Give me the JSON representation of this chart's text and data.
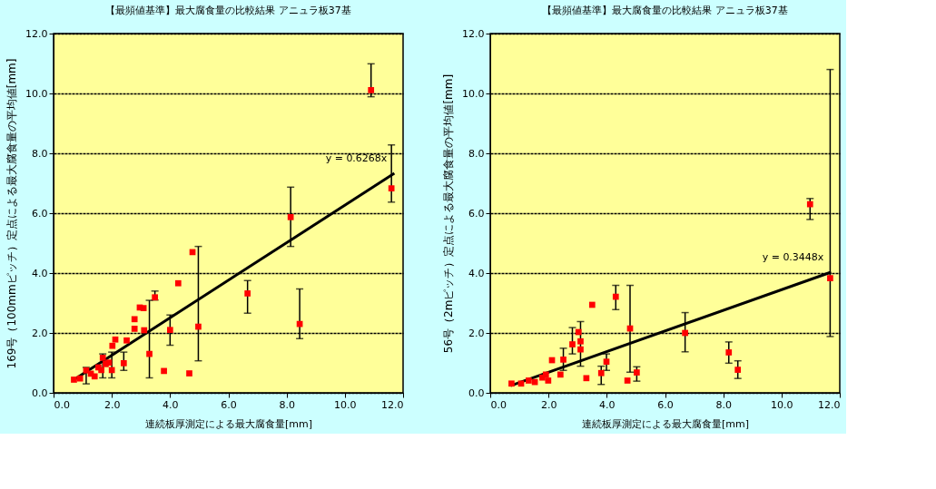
{
  "chart_data": [
    {
      "type": "scatter",
      "title": "【最頻値基準】最大腐食量の比較結果 アニュラ板37基",
      "xlabel": "連続板厚測定による最大腐食量[mm]",
      "ylabel": "169号（100mmピッチ）定点による最大腐食量の平均値[mm]",
      "xlim": [
        0,
        12
      ],
      "ylim": [
        0,
        12
      ],
      "xticks": [
        {
          "value": 0,
          "label": "0.0"
        },
        {
          "value": 2,
          "label": "2.0"
        },
        {
          "value": 4,
          "label": "4.0"
        },
        {
          "value": 6,
          "label": "6.0"
        },
        {
          "value": 8,
          "label": "8.0"
        },
        {
          "value": 10,
          "label": "10.0"
        },
        {
          "value": 12,
          "label": "12.0"
        }
      ],
      "yticks": [
        {
          "value": 0,
          "label": "0.0"
        },
        {
          "value": 2,
          "label": "2.0"
        },
        {
          "value": 4,
          "label": "4.0"
        },
        {
          "value": 6,
          "label": "6.0"
        },
        {
          "value": 8,
          "label": "8.0"
        },
        {
          "value": 10,
          "label": "10.0"
        },
        {
          "value": 12,
          "label": "12.0"
        }
      ],
      "grid": "y",
      "annotations": [
        "y = 0.6268x"
      ],
      "series": [
        {
          "marker": "square",
          "color": "#ff0000",
          "x": [
            0.7,
            0.91,
            1.12,
            1.28,
            1.41,
            1.54,
            1.64,
            1.69,
            1.79,
            1.9,
            2.0,
            2.02,
            2.12,
            2.41,
            2.51,
            2.78,
            2.78,
            2.96,
            3.09,
            3.11,
            3.29,
            3.48,
            3.79,
            4.0,
            4.28,
            4.66,
            4.77,
            4.97,
            6.66,
            8.14,
            8.45,
            10.9,
            11.6
          ],
          "values": [
            0.44,
            0.48,
            0.75,
            0.64,
            0.55,
            0.85,
            0.76,
            1.17,
            0.96,
            1.01,
            0.76,
            1.57,
            1.78,
            0.99,
            1.75,
            2.46,
            2.14,
            2.85,
            2.83,
            2.09,
            1.3,
            3.19,
            0.73,
            2.1,
            3.66,
            0.65,
            4.7,
            2.21,
            3.32,
            5.87,
            2.3,
            10.11,
            6.83
          ],
          "errors": [
            null,
            null,
            [
              0.3,
              0.85
            ],
            null,
            null,
            null,
            null,
            [
              0.5,
              1.3
            ],
            null,
            null,
            [
              0.5,
              1.36
            ],
            null,
            null,
            [
              0.75,
              1.36
            ],
            null,
            null,
            null,
            null,
            null,
            null,
            [
              0.5,
              3.09
            ],
            [
              3.1,
              3.4
            ],
            null,
            [
              1.59,
              2.6
            ],
            null,
            null,
            null,
            [
              1.07,
              4.89
            ],
            [
              2.66,
              3.75
            ],
            [
              4.89,
              6.87
            ],
            [
              1.81,
              3.47
            ],
            [
              9.89,
              10.99
            ],
            [
              6.37,
              8.28
            ]
          ]
        },
        {
          "type": "line",
          "marker": "none",
          "color": "#000000",
          "x": [
            0.7,
            11.7
          ],
          "values": [
            0.44,
            7.33
          ]
        }
      ]
    },
    {
      "type": "scatter",
      "title": "【最頻値基準】最大腐食量の比較結果 アニュラ板37基",
      "xlabel": "連続板厚測定による最大腐食量[mm]",
      "ylabel": "56号（2mピッチ）定点による最大腐食量の平均値[mm]",
      "xlim": [
        0,
        12
      ],
      "ylim": [
        0,
        12
      ],
      "xticks": [
        {
          "value": 0,
          "label": "0.0"
        },
        {
          "value": 2,
          "label": "2.0"
        },
        {
          "value": 4,
          "label": "4.0"
        },
        {
          "value": 6,
          "label": "6.0"
        },
        {
          "value": 8,
          "label": "8.0"
        },
        {
          "value": 10,
          "label": "10.0"
        },
        {
          "value": 12,
          "label": "12.0"
        }
      ],
      "yticks": [
        {
          "value": 0,
          "label": "0.0"
        },
        {
          "value": 2,
          "label": "2.0"
        },
        {
          "value": 4,
          "label": "4.0"
        },
        {
          "value": 6,
          "label": "6.0"
        },
        {
          "value": 8,
          "label": "8.0"
        },
        {
          "value": 10,
          "label": "10.0"
        },
        {
          "value": 12,
          "label": "12.0"
        }
      ],
      "grid": "y",
      "annotations": [
        "y = 0.3448x"
      ],
      "series": [
        {
          "marker": "square",
          "color": "#ff0000",
          "x": [
            0.73,
            1.06,
            1.32,
            1.53,
            1.79,
            1.91,
            1.99,
            2.12,
            2.41,
            2.51,
            2.82,
            3.03,
            3.1,
            3.1,
            3.3,
            3.5,
            3.81,
            3.99,
            4.31,
            4.71,
            4.8,
            5.03,
            6.69,
            8.19,
            8.5,
            10.98,
            11.67
          ],
          "values": [
            0.31,
            0.31,
            0.41,
            0.36,
            0.51,
            0.61,
            0.41,
            1.09,
            0.61,
            1.11,
            1.62,
            2.03,
            1.72,
            1.45,
            0.49,
            2.94,
            0.66,
            1.04,
            3.21,
            0.41,
            2.15,
            0.68,
            2.0,
            1.35,
            0.77,
            6.3,
            3.83
          ],
          "errors": [
            null,
            null,
            null,
            null,
            null,
            null,
            null,
            null,
            null,
            [
              0.75,
              1.49
            ],
            [
              1.3,
              2.18
            ],
            null,
            null,
            [
              0.89,
              2.38
            ],
            null,
            null,
            [
              0.28,
              0.89
            ],
            [
              0.75,
              1.3
            ],
            [
              2.78,
              3.59
            ],
            null,
            [
              0.69,
              3.59
            ],
            [
              0.39,
              0.87
            ],
            [
              1.37,
              2.68
            ],
            [
              0.99,
              1.7
            ],
            [
              0.48,
              1.07
            ],
            [
              5.79,
              6.49
            ],
            [
              1.88,
              10.8
            ]
          ]
        },
        {
          "type": "line",
          "marker": "none",
          "color": "#000000",
          "x": [
            0.7,
            11.7
          ],
          "values": [
            0.24,
            4.03
          ]
        }
      ]
    }
  ]
}
